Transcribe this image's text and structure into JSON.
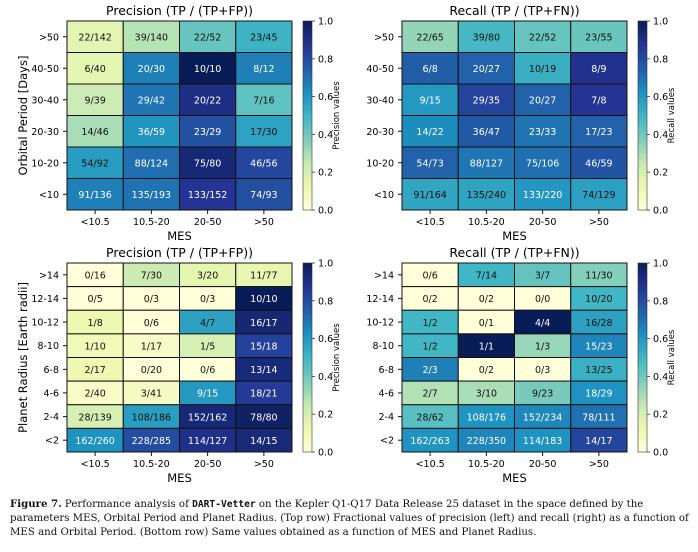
{
  "chart_data": [
    {
      "type": "heatmap",
      "title": "Precision (TP / (TP+FP))",
      "xlabel": "MES",
      "ylabel": "Orbital Period [Days]",
      "x_categories": [
        "<10.5",
        "10.5-20",
        "20-50",
        ">50"
      ],
      "y_categories": [
        ">50",
        "40-50",
        "30-40",
        "20-30",
        "10-20",
        "<10"
      ],
      "cell_labels": [
        [
          "22/142",
          "39/140",
          "22/52",
          "23/45"
        ],
        [
          "6/40",
          "20/30",
          "10/10",
          "8/12"
        ],
        [
          "9/39",
          "29/42",
          "20/22",
          "7/16"
        ],
        [
          "14/46",
          "36/59",
          "23/29",
          "17/30"
        ],
        [
          "54/92",
          "88/124",
          "75/80",
          "46/56"
        ],
        [
          "91/136",
          "135/193",
          "133/152",
          "74/93"
        ]
      ],
      "values": [
        [
          0.155,
          0.279,
          0.423,
          0.511
        ],
        [
          0.15,
          0.667,
          1.0,
          0.667
        ],
        [
          0.231,
          0.69,
          0.909,
          0.4375
        ],
        [
          0.304,
          0.61,
          0.793,
          0.567
        ],
        [
          0.587,
          0.71,
          0.9375,
          0.821
        ],
        [
          0.669,
          0.699,
          0.875,
          0.796
        ]
      ],
      "colorbar_label": "Precision values",
      "colorbar_range": [
        0.0,
        1.0
      ],
      "colorbar_ticks": [
        "0.0",
        "0.2",
        "0.4",
        "0.6",
        "0.8",
        "1.0"
      ],
      "colormap": "YlGnBu"
    },
    {
      "type": "heatmap",
      "title": "Recall (TP / (TP+FN))",
      "xlabel": "MES",
      "ylabel": "",
      "x_categories": [
        "<10.5",
        "10.5-20",
        "20-50",
        ">50"
      ],
      "y_categories": [
        ">50",
        "40-50",
        "30-40",
        "20-30",
        "10-20",
        "<10"
      ],
      "cell_labels": [
        [
          "22/65",
          "39/80",
          "22/52",
          "23/55"
        ],
        [
          "6/8",
          "20/27",
          "10/19",
          "8/9"
        ],
        [
          "9/15",
          "29/35",
          "20/27",
          "7/8"
        ],
        [
          "14/22",
          "36/47",
          "23/33",
          "17/23"
        ],
        [
          "54/73",
          "88/127",
          "75/106",
          "46/59"
        ],
        [
          "91/164",
          "135/240",
          "133/220",
          "74/129"
        ]
      ],
      "values": [
        [
          0.338,
          0.4875,
          0.423,
          0.418
        ],
        [
          0.75,
          0.741,
          0.526,
          0.889
        ],
        [
          0.6,
          0.829,
          0.741,
          0.875
        ],
        [
          0.636,
          0.766,
          0.697,
          0.739
        ],
        [
          0.74,
          0.693,
          0.708,
          0.78
        ],
        [
          0.555,
          0.5625,
          0.605,
          0.574
        ]
      ],
      "colorbar_label": "Recall values",
      "colorbar_range": [
        0.0,
        1.0
      ],
      "colorbar_ticks": [
        "0.0",
        "0.2",
        "0.4",
        "0.6",
        "0.8",
        "1.0"
      ],
      "colormap": "YlGnBu"
    },
    {
      "type": "heatmap",
      "title": "Precision (TP / (TP+FP))",
      "xlabel": "MES",
      "ylabel": "Planet Radius [Earth radii]",
      "x_categories": [
        "<10.5",
        "10.5-20",
        "20-50",
        ">50"
      ],
      "y_categories": [
        ">14",
        "12-14",
        "10-12",
        "8-10",
        "6-8",
        "4-6",
        "2-4",
        "<2"
      ],
      "cell_labels": [
        [
          "0/16",
          "7/30",
          "3/20",
          "11/77"
        ],
        [
          "0/5",
          "0/3",
          "0/3",
          "10/10"
        ],
        [
          "1/8",
          "0/6",
          "4/7",
          "16/17"
        ],
        [
          "1/10",
          "1/17",
          "1/5",
          "15/18"
        ],
        [
          "2/17",
          "0/20",
          "0/6",
          "13/14"
        ],
        [
          "2/40",
          "3/41",
          "9/15",
          "18/21"
        ],
        [
          "28/139",
          "108/186",
          "152/162",
          "78/80"
        ],
        [
          "162/260",
          "228/285",
          "114/127",
          "14/15"
        ]
      ],
      "values": [
        [
          0.0,
          0.233,
          0.15,
          0.143
        ],
        [
          0.0,
          0.0,
          0.0,
          1.0
        ],
        [
          0.125,
          0.0,
          0.571,
          0.941
        ],
        [
          0.1,
          0.059,
          0.2,
          0.833
        ],
        [
          0.118,
          0.0,
          0.0,
          0.929
        ],
        [
          0.05,
          0.073,
          0.6,
          0.857
        ],
        [
          0.201,
          0.581,
          0.938,
          0.975
        ],
        [
          0.623,
          0.8,
          0.898,
          0.933
        ]
      ],
      "colorbar_label": "Precision values",
      "colorbar_range": [
        0.0,
        1.0
      ],
      "colorbar_ticks": [
        "0.0",
        "0.2",
        "0.4",
        "0.6",
        "0.8",
        "1.0"
      ],
      "colormap": "YlGnBu"
    },
    {
      "type": "heatmap",
      "title": "Recall (TP / (TP+FN))",
      "xlabel": "MES",
      "ylabel": "",
      "x_categories": [
        "<10.5",
        "10.5-20",
        "20-50",
        ">50"
      ],
      "y_categories": [
        ">14",
        "12-14",
        "10-12",
        "8-10",
        "6-8",
        "4-6",
        "2-4",
        "<2"
      ],
      "cell_labels": [
        [
          "0/6",
          "7/14",
          "3/7",
          "11/30"
        ],
        [
          "0/2",
          "0/2",
          "0/0",
          "10/20"
        ],
        [
          "1/2",
          "0/1",
          "4/4",
          "16/28"
        ],
        [
          "1/2",
          "1/1",
          "1/3",
          "15/23"
        ],
        [
          "2/3",
          "0/2",
          "0/3",
          "13/25"
        ],
        [
          "2/7",
          "3/10",
          "9/23",
          "18/29"
        ],
        [
          "28/62",
          "108/176",
          "152/234",
          "78/111"
        ],
        [
          "162/263",
          "228/350",
          "114/183",
          "14/17"
        ]
      ],
      "values": [
        [
          0.0,
          0.5,
          0.429,
          0.367
        ],
        [
          0.0,
          0.0,
          0.0,
          0.5
        ],
        [
          0.5,
          0.0,
          1.0,
          0.571
        ],
        [
          0.5,
          1.0,
          0.333,
          0.652
        ],
        [
          0.667,
          0.0,
          0.0,
          0.52
        ],
        [
          0.286,
          0.3,
          0.391,
          0.621
        ],
        [
          0.452,
          0.614,
          0.65,
          0.703
        ],
        [
          0.616,
          0.651,
          0.623,
          0.824
        ]
      ],
      "colorbar_label": "Recall values",
      "colorbar_range": [
        0.0,
        1.0
      ],
      "colorbar_ticks": [
        "0.0",
        "0.2",
        "0.4",
        "0.6",
        "0.8",
        "1.0"
      ],
      "colormap": "YlGnBu"
    }
  ],
  "caption": {
    "label": "Figure 7.",
    "text_before": "Performance analysis of",
    "code": "DART-Vetter",
    "text_after": "on the Kepler Q1-Q17 Data Release 25 dataset in the space defined by the parameters MES, Orbital Period and Planet Radius. (Top row) Fractional values of precision (left) and recall (right) as a function of MES and Orbital Period. (Bottom row) Same values obtained as a function of MES and Planet Radius."
  }
}
